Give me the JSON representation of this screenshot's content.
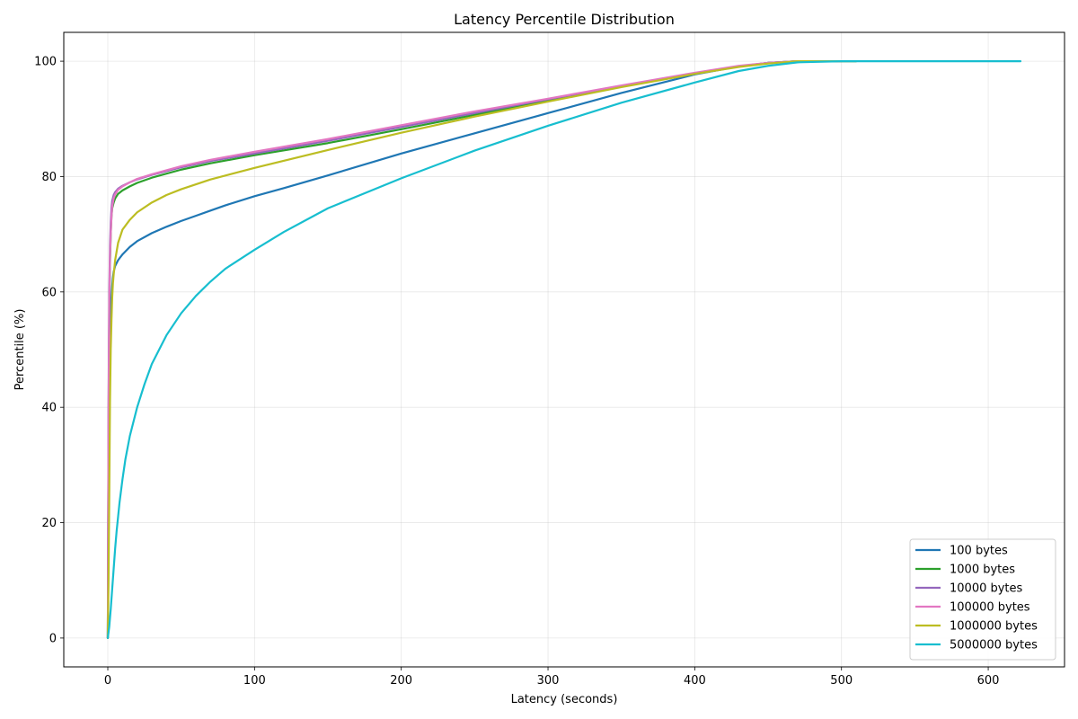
{
  "chart_data": {
    "type": "line",
    "title": "Latency Percentile Distribution",
    "xlabel": "Latency (seconds)",
    "ylabel": "Percentile (%)",
    "xlim": [
      -30,
      652
    ],
    "ylim": [
      -5,
      105
    ],
    "xticks": [
      0,
      100,
      200,
      300,
      400,
      500,
      600
    ],
    "yticks": [
      0,
      20,
      40,
      60,
      80,
      100
    ],
    "grid": true,
    "legend_position": "bottom-right",
    "series": [
      {
        "name": "100 bytes",
        "color": "#1f77b4",
        "x": [
          0,
          0.5,
          1,
          1.5,
          2,
          2.5,
          3,
          3.5,
          4,
          5,
          7,
          10,
          15,
          20,
          30,
          40,
          50,
          60,
          70,
          80,
          100,
          120,
          150,
          200,
          250,
          300,
          350,
          400,
          430,
          450,
          470,
          500,
          510
        ],
        "y": [
          0,
          30,
          45,
          52,
          56,
          59,
          61,
          62.5,
          63.5,
          64.5,
          65.5,
          66.5,
          67.8,
          68.8,
          70.2,
          71.3,
          72.3,
          73.2,
          74.1,
          75.0,
          76.6,
          78.0,
          80.2,
          84.0,
          87.5,
          91.0,
          94.5,
          97.7,
          99.1,
          99.7,
          100,
          100,
          100
        ]
      },
      {
        "name": "1000 bytes",
        "color": "#2ca02c",
        "x": [
          0,
          0.5,
          1,
          1.5,
          2,
          2.5,
          3,
          4,
          5,
          7,
          10,
          15,
          20,
          30,
          50,
          70,
          100,
          150,
          200,
          250,
          300,
          350,
          400,
          430,
          450,
          470,
          500
        ],
        "y": [
          0,
          35,
          55,
          65,
          70,
          73,
          74.5,
          75.5,
          76.2,
          77.0,
          77.6,
          78.3,
          78.9,
          79.8,
          81.2,
          82.3,
          83.7,
          85.8,
          88.2,
          90.7,
          93.2,
          95.6,
          97.9,
          99.1,
          99.7,
          100,
          100
        ]
      },
      {
        "name": "10000 bytes",
        "color": "#9467bd",
        "x": [
          0,
          0.5,
          1,
          1.5,
          2,
          2.5,
          3,
          4,
          5,
          7,
          10,
          15,
          20,
          30,
          50,
          70,
          100,
          150,
          200,
          250,
          300,
          350,
          400,
          430,
          450,
          470,
          500
        ],
        "y": [
          0,
          40,
          60,
          68,
          72,
          74.5,
          75.8,
          76.8,
          77.3,
          77.9,
          78.4,
          79.0,
          79.5,
          80.3,
          81.6,
          82.7,
          84.0,
          86.2,
          88.6,
          91.0,
          93.4,
          95.7,
          97.9,
          99.1,
          99.7,
          100,
          100
        ]
      },
      {
        "name": "100000 bytes",
        "color": "#e377c2",
        "x": [
          0,
          0.5,
          1,
          1.5,
          2,
          2.5,
          3,
          4,
          5,
          7,
          10,
          15,
          20,
          30,
          50,
          70,
          100,
          150,
          200,
          250,
          300,
          350,
          400,
          430,
          450,
          470,
          500
        ],
        "y": [
          0,
          38,
          58,
          66,
          70,
          73,
          74.8,
          76.2,
          76.9,
          77.7,
          78.3,
          79.0,
          79.6,
          80.4,
          81.8,
          82.9,
          84.3,
          86.5,
          88.9,
          91.3,
          93.5,
          95.8,
          98.0,
          99.2,
          99.7,
          100,
          100
        ]
      },
      {
        "name": "1000000 bytes",
        "color": "#bcbd22",
        "x": [
          0,
          0.5,
          1,
          1.5,
          2,
          2.5,
          3,
          3.5,
          4,
          5,
          7,
          10,
          15,
          20,
          30,
          40,
          50,
          70,
          100,
          150,
          200,
          250,
          300,
          350,
          400,
          430,
          450,
          470,
          510
        ],
        "y": [
          0,
          10,
          25,
          41,
          50,
          55,
          59,
          61.5,
          63,
          65.5,
          68.5,
          70.8,
          72.5,
          73.8,
          75.5,
          76.8,
          77.8,
          79.5,
          81.5,
          84.6,
          87.6,
          90.4,
          93.0,
          95.5,
          97.8,
          99.0,
          99.6,
          100,
          100
        ]
      },
      {
        "name": "5000000 bytes",
        "color": "#17becf",
        "x": [
          0,
          1,
          2,
          3,
          4,
          5,
          6,
          7,
          8,
          10,
          12,
          15,
          20,
          25,
          30,
          40,
          50,
          60,
          70,
          80,
          100,
          120,
          150,
          200,
          250,
          300,
          350,
          400,
          430,
          450,
          470,
          500,
          550,
          600,
          622
        ],
        "y": [
          0,
          2,
          5,
          8.5,
          12,
          15.5,
          18.5,
          21,
          23.5,
          27.5,
          31,
          35,
          40,
          44,
          47.5,
          52.5,
          56.3,
          59.3,
          61.8,
          64.0,
          67.3,
          70.4,
          74.5,
          79.7,
          84.5,
          88.8,
          92.8,
          96.3,
          98.3,
          99.2,
          99.8,
          100,
          100,
          100,
          100
        ]
      }
    ]
  }
}
